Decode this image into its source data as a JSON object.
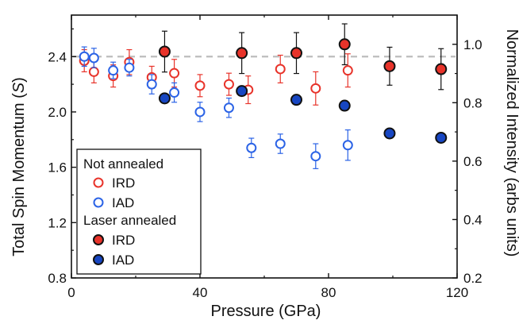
{
  "chart_data": {
    "type": "scatter",
    "xlabel": "Pressure (GPa)",
    "ylabel_left_prefix": "Total Spin Momentum (",
    "ylabel_left_var": "S",
    "ylabel_left_suffix": ")",
    "ylabel_right": "Normalized Intensity (arbs units)",
    "xlim": [
      0,
      120
    ],
    "ylim_left": [
      0.8,
      2.7
    ],
    "ylim_right": [
      0.2,
      1.1
    ],
    "x_ticks": [
      0,
      40,
      80,
      120
    ],
    "y_left_ticks": [
      "0.8",
      "1.2",
      "1.6",
      "2.0",
      "2.4"
    ],
    "y_right_ticks": [
      "0.2",
      "0.4",
      "0.6",
      "0.8",
      "1.0"
    ],
    "reference_line_y": 2.4,
    "legend": {
      "group1": "Not annealed",
      "group2": "Laser annealed",
      "ird": "IRD",
      "iad": "IAD"
    },
    "series": [
      {
        "name": "IRD",
        "group": "Not annealed",
        "color": "#e8332a",
        "filled": false,
        "axis": "left",
        "points": [
          {
            "x": 4,
            "y": 2.37,
            "err": 0.08
          },
          {
            "x": 7,
            "y": 2.29,
            "err": 0.08
          },
          {
            "x": 13,
            "y": 2.26,
            "err": 0.08
          },
          {
            "x": 18,
            "y": 2.36,
            "err": 0.09
          },
          {
            "x": 25,
            "y": 2.25,
            "err": 0.08
          },
          {
            "x": 32,
            "y": 2.28,
            "err": 0.1
          },
          {
            "x": 40,
            "y": 2.19,
            "err": 0.08
          },
          {
            "x": 49,
            "y": 2.2,
            "err": 0.08
          },
          {
            "x": 55,
            "y": 2.16,
            "err": 0.1
          },
          {
            "x": 65,
            "y": 2.31,
            "err": 0.1
          },
          {
            "x": 76,
            "y": 2.17,
            "err": 0.12
          },
          {
            "x": 86,
            "y": 2.3,
            "err": 0.12
          }
        ]
      },
      {
        "name": "IAD",
        "group": "Not annealed",
        "color": "#2b63e6",
        "filled": false,
        "axis": "left",
        "points": [
          {
            "x": 4,
            "y": 2.4,
            "err": 0.07
          },
          {
            "x": 7,
            "y": 2.39,
            "err": 0.07
          },
          {
            "x": 13,
            "y": 2.3,
            "err": 0.06
          },
          {
            "x": 18,
            "y": 2.32,
            "err": 0.06
          },
          {
            "x": 25,
            "y": 2.2,
            "err": 0.07
          },
          {
            "x": 32,
            "y": 2.14,
            "err": 0.07
          },
          {
            "x": 40,
            "y": 2.0,
            "err": 0.07
          },
          {
            "x": 49,
            "y": 2.03,
            "err": 0.07
          },
          {
            "x": 56,
            "y": 1.74,
            "err": 0.07
          },
          {
            "x": 65,
            "y": 1.77,
            "err": 0.07
          },
          {
            "x": 76,
            "y": 1.68,
            "err": 0.09
          },
          {
            "x": 86,
            "y": 1.76,
            "err": 0.11
          }
        ]
      },
      {
        "name": "IRD",
        "group": "Laser annealed",
        "color": "#e8332a",
        "filled": true,
        "axis": "right",
        "points": [
          {
            "x": 29,
            "y": 0.975,
            "err": 0.07
          },
          {
            "x": 53,
            "y": 0.97,
            "err": 0.07
          },
          {
            "x": 70,
            "y": 0.97,
            "err": 0.07
          },
          {
            "x": 85,
            "y": 1.0,
            "err": 0.07
          },
          {
            "x": 99,
            "y": 0.925,
            "err": 0.065
          },
          {
            "x": 115,
            "y": 0.915,
            "err": 0.07
          }
        ]
      },
      {
        "name": "IAD",
        "group": "Laser annealed",
        "color": "#1746c2",
        "filled": true,
        "axis": "right",
        "points": [
          {
            "x": 29,
            "y": 0.815,
            "err": 0.0
          },
          {
            "x": 53,
            "y": 0.84,
            "err": 0.0
          },
          {
            "x": 70,
            "y": 0.81,
            "err": 0.01
          },
          {
            "x": 85,
            "y": 0.79,
            "err": 0.01
          },
          {
            "x": 99,
            "y": 0.695,
            "err": 0.01
          },
          {
            "x": 115,
            "y": 0.68,
            "err": 0.01
          }
        ]
      }
    ]
  }
}
